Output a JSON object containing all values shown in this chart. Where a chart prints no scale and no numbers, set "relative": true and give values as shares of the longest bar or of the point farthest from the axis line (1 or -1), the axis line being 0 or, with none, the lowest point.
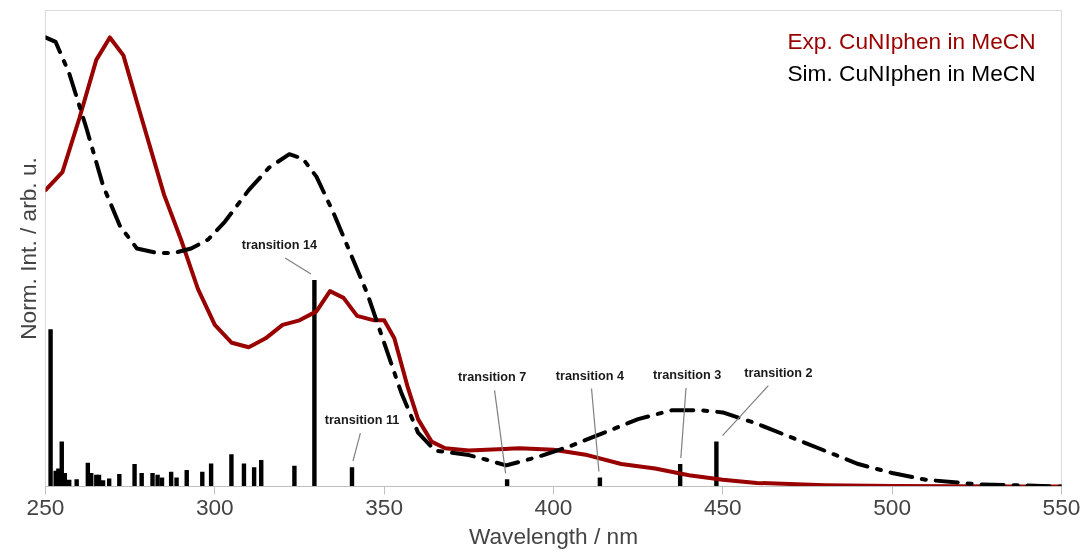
{
  "chart_data": {
    "type": "line",
    "relative": true,
    "xlabel": "Wavelength / nm",
    "ylabel": "Norm. Int. / arb. u.",
    "xlim": [
      250,
      550
    ],
    "xticks": [
      250,
      300,
      350,
      400,
      450,
      500,
      550
    ],
    "legend": "top right",
    "grid": false,
    "series": [
      {
        "name": "Exp. CuNIphen in MeCN",
        "color": "#990000",
        "line_style": "solid",
        "x": [
          250,
          255,
          260,
          265,
          269,
          273,
          278,
          285,
          290,
          295,
          300,
          305,
          310,
          315,
          320,
          325,
          330,
          334,
          338,
          342,
          347,
          350,
          353,
          357,
          360,
          364,
          368,
          375,
          390,
          400,
          410,
          420,
          430,
          440,
          450,
          460,
          480,
          500,
          550
        ],
        "values": [
          0.66,
          0.7,
          0.82,
          0.95,
          1.0,
          0.96,
          0.83,
          0.65,
          0.55,
          0.44,
          0.36,
          0.32,
          0.31,
          0.33,
          0.36,
          0.37,
          0.39,
          0.435,
          0.42,
          0.38,
          0.37,
          0.37,
          0.33,
          0.22,
          0.15,
          0.1,
          0.085,
          0.08,
          0.085,
          0.082,
          0.07,
          0.05,
          0.04,
          0.025,
          0.015,
          0.008,
          0.003,
          0.001,
          0
        ]
      },
      {
        "name": "Sim. CuNIphen in MeCN",
        "color": "#000000",
        "line_style": "dashed",
        "x": [
          250,
          253,
          257,
          262,
          267,
          272,
          277,
          283,
          288,
          293,
          298,
          303,
          310,
          316,
          322,
          326,
          330,
          335,
          340,
          345,
          350,
          355,
          360,
          365,
          370,
          375,
          380,
          386,
          395,
          405,
          415,
          425,
          435,
          443,
          450,
          460,
          470,
          480,
          490,
          500,
          510,
          525,
          540,
          550
        ],
        "values": [
          1.0,
          0.99,
          0.92,
          0.8,
          0.67,
          0.58,
          0.53,
          0.52,
          0.52,
          0.53,
          0.55,
          0.59,
          0.66,
          0.71,
          0.74,
          0.73,
          0.69,
          0.61,
          0.52,
          0.43,
          0.32,
          0.21,
          0.12,
          0.08,
          0.075,
          0.07,
          0.06,
          0.047,
          0.065,
          0.09,
          0.12,
          0.15,
          0.17,
          0.17,
          0.165,
          0.14,
          0.11,
          0.08,
          0.05,
          0.03,
          0.015,
          0.005,
          0.002,
          0
        ]
      },
      {
        "type": "bar",
        "color": "#000000",
        "x": [
          251.5,
          253,
          253.8,
          254.8,
          255.7,
          257,
          259.2,
          262.5,
          263.5,
          265,
          265.8,
          267,
          268.8,
          271.8,
          276.3,
          278.4,
          281.6,
          283.1,
          284.4,
          287.1,
          288.7,
          291.7,
          296.3,
          298.9,
          304.9,
          308.6,
          311.6,
          313.7,
          323.5,
          329.4,
          340.5,
          386.3,
          413.7,
          437.4,
          448.1
        ],
        "values": [
          0.35,
          0.035,
          0.04,
          0.1,
          0.03,
          0.015,
          0.016,
          0.053,
          0.03,
          0.026,
          0.026,
          0.014,
          0.018,
          0.028,
          0.05,
          0.03,
          0.03,
          0.026,
          0.02,
          0.033,
          0.02,
          0.037,
          0.033,
          0.051,
          0.072,
          0.051,
          0.043,
          0.059,
          0.046,
          0.46,
          0.043,
          0.016,
          0.02,
          0.05,
          0.1
        ]
      }
    ],
    "annotations": [
      {
        "text": "transition 14",
        "x": 329.4,
        "y": 0.46
      },
      {
        "text": "transition 11",
        "x": 340.5,
        "y": 0.043
      },
      {
        "text": "transition 7",
        "x": 386.3,
        "y": 0.016
      },
      {
        "text": "transition 4",
        "x": 413.7,
        "y": 0.02
      },
      {
        "text": "transition 3",
        "x": 437.4,
        "y": 0.05
      },
      {
        "text": "transition 2",
        "x": 448.1,
        "y": 0.1
      }
    ]
  }
}
